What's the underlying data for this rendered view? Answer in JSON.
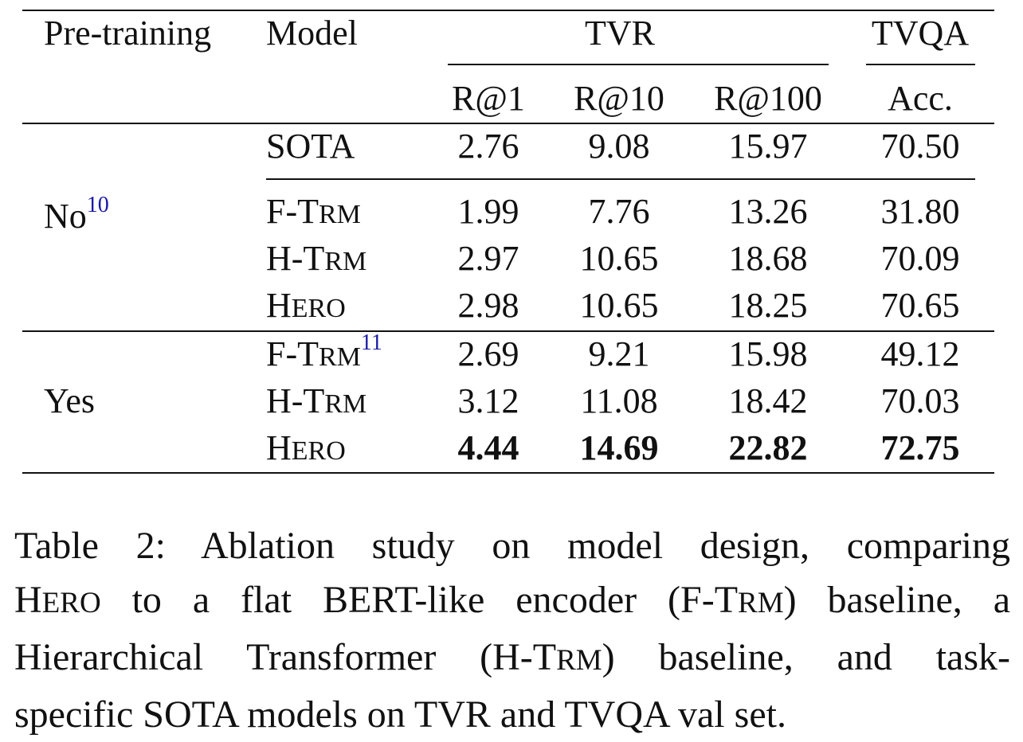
{
  "table": {
    "headers": {
      "pretraining": "Pre-training",
      "model": "Model",
      "tvr": "TVR",
      "tvqa": "TVQA",
      "r1": "R@1",
      "r10": "R@10",
      "r100": "R@100",
      "acc": "Acc."
    },
    "groups": [
      {
        "label": "No",
        "footnote": "10",
        "rows": [
          {
            "model_a": "SOTA",
            "model_b": "",
            "model_c": "",
            "r1": "2.76",
            "r10": "9.08",
            "r100": "15.97",
            "acc": "70.50"
          },
          {
            "model_a": "F-T",
            "model_b": "RM",
            "model_c": "",
            "r1": "1.99",
            "r10": "7.76",
            "r100": "13.26",
            "acc": "31.80"
          },
          {
            "model_a": "H-T",
            "model_b": "RM",
            "model_c": "",
            "r1": "2.97",
            "r10": "10.65",
            "r100": "18.68",
            "acc": "70.09"
          },
          {
            "model_a": "H",
            "model_b": "ERO",
            "model_c": "",
            "r1": "2.98",
            "r10": "10.65",
            "r100": "18.25",
            "acc": "70.65"
          }
        ]
      },
      {
        "label": "Yes",
        "footnote": "",
        "rows": [
          {
            "model_a": "F-T",
            "model_b": "RM",
            "model_c": "11",
            "r1": "2.69",
            "r10": "9.21",
            "r100": "15.98",
            "acc": "49.12"
          },
          {
            "model_a": "H-T",
            "model_b": "RM",
            "model_c": "",
            "r1": "3.12",
            "r10": "11.08",
            "r100": "18.42",
            "acc": "70.03"
          },
          {
            "model_a": "H",
            "model_b": "ERO",
            "model_c": "",
            "r1": "4.44",
            "r10": "14.69",
            "r100": "22.82",
            "acc": "72.75"
          }
        ]
      }
    ]
  },
  "caption": {
    "line1": "Table 2:  Ablation study on model design, comparing",
    "line2_a": "H",
    "line2_b": "ERO",
    "line2_c": " to a flat BERT-like encoder (F-T",
    "line2_d": "RM",
    "line2_e": ") baseline, a",
    "line3_a": "Hierarchical Transformer (H-T",
    "line3_b": "RM",
    "line3_c": ") baseline, and task-",
    "line4": "specific SOTA models on TVR and TVQA val set."
  }
}
